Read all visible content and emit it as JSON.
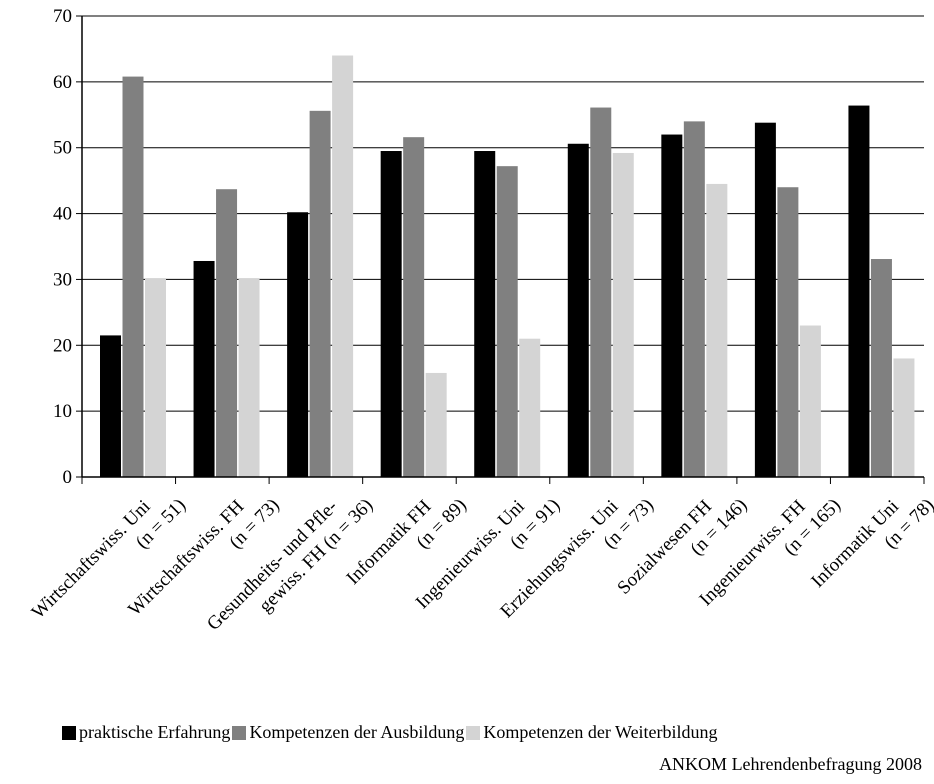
{
  "chart_data": {
    "type": "bar",
    "categories": [
      [
        "Wirtschaftswiss. Uni",
        "(n = 51)"
      ],
      [
        "Wirtschaftswiss. FH",
        "(n = 73)"
      ],
      [
        "Gesundheits- und Pfle-",
        "gewiss. FH (n = 36)"
      ],
      [
        "Informatik FH",
        "(n = 89)"
      ],
      [
        "Ingenieurwiss. Uni",
        "(n = 91)"
      ],
      [
        "Erziehungswiss. Uni",
        "(n = 73)"
      ],
      [
        "Sozialwesen FH",
        "(n = 146)"
      ],
      [
        "Ingenieurwiss. FH",
        "(n = 165)"
      ],
      [
        "Informatik Uni",
        "(n = 78)"
      ]
    ],
    "series": [
      {
        "name": "praktische Erfahrung",
        "color": "#000000",
        "values": [
          21.5,
          32.8,
          40.2,
          49.5,
          49.5,
          50.6,
          52.0,
          53.8,
          56.4
        ]
      },
      {
        "name": "Kompetenzen der Ausbildung",
        "color": "#808080",
        "values": [
          60.8,
          43.7,
          55.6,
          51.6,
          47.2,
          56.1,
          54.0,
          44.0,
          33.1
        ]
      },
      {
        "name": "Kompetenzen der Weiterbildung",
        "color": "#d4d4d4",
        "values": [
          30.2,
          30.2,
          64.0,
          15.8,
          21.0,
          49.2,
          44.5,
          23.0,
          18.0
        ]
      }
    ],
    "yticks": [
      0,
      10,
      20,
      30,
      40,
      50,
      60,
      70
    ],
    "ylim": [
      0,
      70
    ],
    "grid": true,
    "legend_position": "bottom"
  },
  "source": "ANKOM Lehrendenbefragung 2008"
}
